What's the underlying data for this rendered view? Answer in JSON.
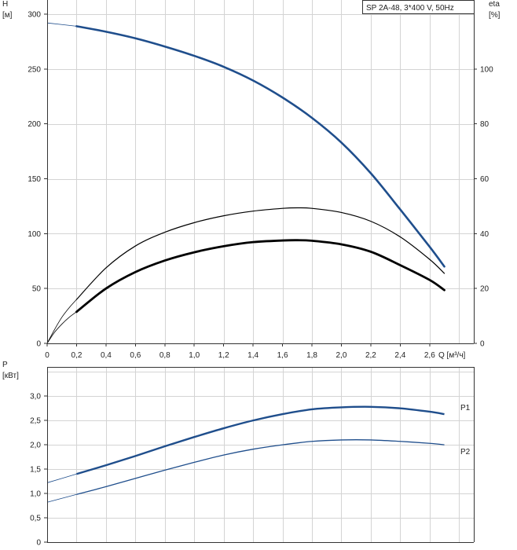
{
  "chart_data": [
    {
      "type": "line",
      "title": "SP 2A-48, 3*400 V, 50Hz",
      "xlabel": "Q [м³/ч]",
      "ylabel_left": "H [м]",
      "ylabel_left_name": "H",
      "ylabel_left_unit": "[м]",
      "ylabel_right_name": "eta",
      "ylabel_right_unit": "[%]",
      "xlim": [
        0,
        2.9
      ],
      "ylim": [
        0,
        300
      ],
      "ylim_right": [
        0,
        120
      ],
      "grid": true,
      "x_ticks": [
        "0",
        "0,2",
        "0,4",
        "0,6",
        "0,8",
        "1,0",
        "1,2",
        "1,4",
        "1,6",
        "1,8",
        "2,0",
        "2,2",
        "2,4",
        "2,6"
      ],
      "x_ticks_values": [
        0,
        0.2,
        0.4,
        0.6,
        0.8,
        1.0,
        1.2,
        1.4,
        1.6,
        1.8,
        2.0,
        2.2,
        2.4,
        2.6
      ],
      "y_ticks_left": [
        "0",
        "50",
        "100",
        "150",
        "200",
        "250",
        "300"
      ],
      "y_ticks_left_values": [
        0,
        50,
        100,
        150,
        200,
        250,
        300
      ],
      "y_ticks_right": [
        "0",
        "20",
        "40",
        "60",
        "80",
        "100"
      ],
      "y_ticks_right_values": [
        0,
        20,
        40,
        60,
        80,
        100
      ],
      "series": [
        {
          "key": "H",
          "axis": "left",
          "color": "#1f4e8c",
          "ext_x": [
            0,
            0.2
          ],
          "ext_y": [
            292,
            289
          ],
          "x": [
            0.2,
            0.4,
            0.6,
            0.8,
            1.0,
            1.2,
            1.4,
            1.6,
            1.8,
            2.0,
            2.2,
            2.4,
            2.6,
            2.7
          ],
          "y": [
            289,
            284,
            278,
            270.5,
            262,
            252,
            239.5,
            224,
            205.5,
            183,
            155,
            122,
            88,
            70
          ]
        },
        {
          "key": "eta_upper",
          "axis": "right",
          "color": "#000000",
          "ext_x": [
            0,
            0.05,
            0.1,
            0.15,
            0.2
          ],
          "ext_y": [
            0,
            5,
            9.5,
            13,
            16
          ],
          "x": [
            0.2,
            0.4,
            0.6,
            0.8,
            1.0,
            1.2,
            1.4,
            1.6,
            1.7,
            1.8,
            2.0,
            2.2,
            2.4,
            2.6,
            2.7
          ],
          "y": [
            16,
            27.5,
            35.5,
            40.5,
            44,
            46.5,
            48.2,
            49.2,
            49.4,
            49.2,
            47.7,
            44.5,
            38.8,
            30.6,
            25.5
          ]
        },
        {
          "key": "eta_lower",
          "axis": "right",
          "color": "#000000",
          "ext_x": [
            0,
            0.05,
            0.1,
            0.15,
            0.2
          ],
          "ext_y": [
            0,
            4,
            7,
            9.5,
            11.5
          ],
          "x": [
            0.2,
            0.4,
            0.6,
            0.8,
            1.0,
            1.2,
            1.4,
            1.6,
            1.7,
            1.8,
            2.0,
            2.2,
            2.4,
            2.6,
            2.7
          ],
          "y": [
            11.5,
            20,
            26,
            30.2,
            33.2,
            35.4,
            36.9,
            37.5,
            37.6,
            37.4,
            36.1,
            33.4,
            28.5,
            23.1,
            19.4
          ]
        }
      ]
    },
    {
      "type": "line",
      "ylabel_name": "P",
      "ylabel_unit": "[кВт]",
      "xlim": [
        0,
        2.9
      ],
      "ylim": [
        0,
        3.6
      ],
      "grid": true,
      "y_ticks": [
        "0",
        "0,5",
        "1,0",
        "1,5",
        "2,0",
        "2,5",
        "3,0"
      ],
      "y_ticks_values": [
        0,
        0.5,
        1.0,
        1.5,
        2.0,
        2.5,
        3.0
      ],
      "series": [
        {
          "name": "P1",
          "color": "#1f4e8c",
          "ext_x": [
            0,
            0.2
          ],
          "ext_y": [
            1.22,
            1.4
          ],
          "x": [
            0.2,
            0.4,
            0.6,
            0.8,
            1.0,
            1.2,
            1.4,
            1.6,
            1.8,
            2.0,
            2.2,
            2.4,
            2.6,
            2.7
          ],
          "y": [
            1.4,
            1.58,
            1.77,
            1.97,
            2.16,
            2.34,
            2.5,
            2.63,
            2.73,
            2.77,
            2.78,
            2.75,
            2.68,
            2.63
          ]
        },
        {
          "name": "P2",
          "color": "#1f4e8c",
          "ext_x": [
            0,
            0.2
          ],
          "ext_y": [
            0.82,
            0.98
          ],
          "x": [
            0.2,
            0.4,
            0.6,
            0.8,
            1.0,
            1.2,
            1.4,
            1.6,
            1.8,
            2.0,
            2.2,
            2.4,
            2.6,
            2.7
          ],
          "y": [
            0.98,
            1.14,
            1.31,
            1.48,
            1.64,
            1.79,
            1.91,
            2.0,
            2.07,
            2.1,
            2.1,
            2.07,
            2.03,
            2.0
          ]
        }
      ]
    }
  ]
}
